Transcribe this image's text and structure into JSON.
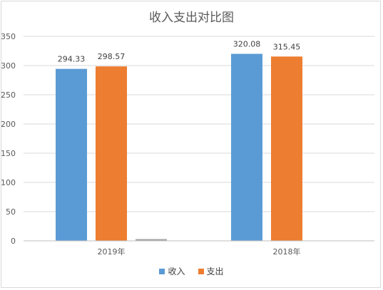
{
  "chart_data": {
    "type": "bar",
    "title": "收入支出对比图",
    "categories": [
      "2019年",
      "2018年"
    ],
    "series": [
      {
        "name": "收入",
        "values": [
          294.33,
          320.08
        ],
        "color": "#5b9bd5"
      },
      {
        "name": "支出",
        "values": [
          298.57,
          315.45
        ],
        "color": "#ed7d31"
      },
      {
        "name": "",
        "values": [
          3,
          0
        ],
        "color": "#a5a5a5"
      }
    ],
    "ylim": [
      0,
      350
    ],
    "yticks": [
      0,
      50,
      100,
      150,
      200,
      250,
      300,
      350
    ],
    "data_labels": [
      [
        "294.33",
        "320.08"
      ],
      [
        "298.57",
        "315.45"
      ],
      null
    ],
    "grid": true,
    "legend_position": "bottom"
  }
}
